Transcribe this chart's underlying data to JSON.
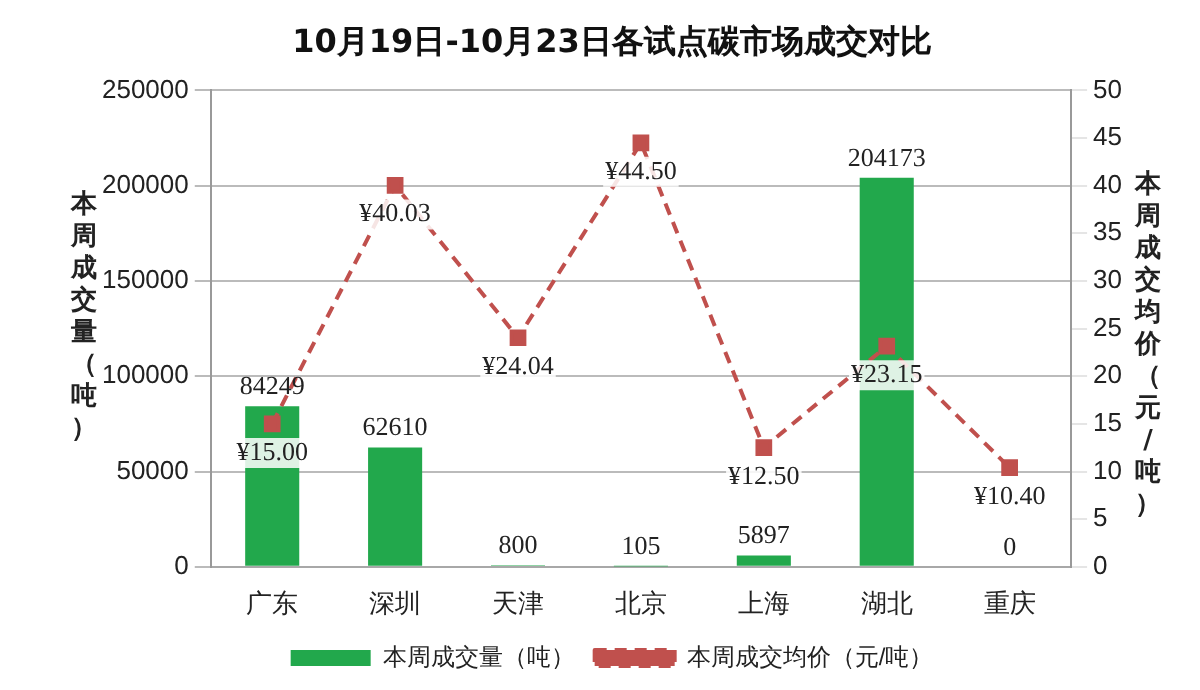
{
  "chart_data": {
    "type": "bar",
    "title": "10月19日-10月23日各试点碳市场成交对比",
    "ylabel": "本周成交量（吨）",
    "y2label": "本周成交均价（元/吨）",
    "categories": [
      "广东",
      "深圳",
      "天津",
      "北京",
      "上海",
      "湖北",
      "重庆"
    ],
    "series": [
      {
        "name": "本周成交量（吨）",
        "color": "#22a84c",
        "values": [
          84249,
          62610,
          800,
          105,
          5897,
          204173,
          0
        ],
        "value_labels": [
          "84249",
          "62610",
          "800",
          "105",
          "5897",
          "204173",
          "0"
        ]
      },
      {
        "name": "本周成交均价（元/吨）",
        "type": "line",
        "axis": "y2",
        "color": "#c0504d",
        "marker": "square",
        "line_style": "dashed",
        "values": [
          15.0,
          40.03,
          24.04,
          44.5,
          12.5,
          23.15,
          10.4
        ],
        "value_labels": [
          "¥15.00",
          "¥40.03",
          "¥24.04",
          "¥44.50",
          "¥12.50",
          "¥23.15",
          "¥10.40"
        ]
      }
    ],
    "ylim": [
      0,
      250000
    ],
    "yticks": [
      0,
      50000,
      100000,
      150000,
      200000,
      250000
    ],
    "y2lim": [
      0,
      50
    ],
    "y2ticks": [
      0,
      5,
      10,
      15,
      20,
      25,
      30,
      35,
      40,
      45,
      50
    ],
    "grid": "y",
    "legend": "bottom"
  }
}
